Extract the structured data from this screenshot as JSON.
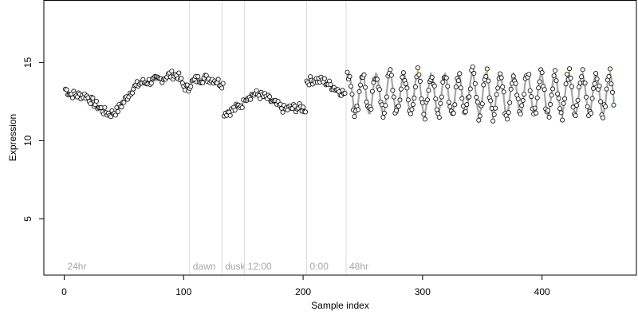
{
  "chart_data": {
    "type": "scatter",
    "title": "",
    "xlabel": "Sample index",
    "ylabel": "Expression",
    "xlim": [
      -17,
      479
    ],
    "ylim": [
      1.4,
      19.0
    ],
    "x_ticks": [
      0,
      100,
      200,
      300,
      400
    ],
    "y_ticks": [
      5,
      10,
      15
    ],
    "grid": false,
    "colors": {
      "point_fill": "#ffffff",
      "point_stroke": "#000000",
      "line": "#a6a6a6",
      "high_residual": "#f4a736",
      "low_residual": "#6f95d6",
      "period_line": "#d9d9d9",
      "period_text": "#a6a6a6"
    },
    "periods": [
      {
        "label": "24hr",
        "x": 0
      },
      {
        "label": "dawn",
        "x": 105
      },
      {
        "label": "dusk",
        "x": 132
      },
      {
        "label": "12:00",
        "x": 151
      },
      {
        "label": "0:00",
        "x": 203
      },
      {
        "label": "48hr",
        "x": 236
      }
    ],
    "segments": [
      {
        "x_start": 1,
        "x_end": 104,
        "anchors": [
          [
            1,
            13.3
          ],
          [
            5,
            13.0
          ],
          [
            12,
            12.9
          ],
          [
            18,
            12.9
          ],
          [
            25,
            12.4
          ],
          [
            33,
            11.9
          ],
          [
            38,
            11.7
          ],
          [
            44,
            11.9
          ],
          [
            50,
            12.5
          ],
          [
            57,
            13.3
          ],
          [
            64,
            13.7
          ],
          [
            72,
            13.8
          ],
          [
            80,
            13.9
          ],
          [
            88,
            14.2
          ],
          [
            95,
            14.2
          ],
          [
            100,
            13.5
          ],
          [
            104,
            13.3
          ]
        ],
        "amp": 0,
        "period": 0
      },
      {
        "x_start": 105,
        "x_end": 133,
        "anchors": [
          [
            105,
            13.6
          ],
          [
            110,
            13.9
          ],
          [
            118,
            14.0
          ],
          [
            126,
            13.9
          ],
          [
            133,
            13.6
          ]
        ],
        "amp": 0,
        "period": 0
      },
      {
        "x_start": 134,
        "x_end": 150,
        "anchors": [
          [
            134,
            11.8
          ],
          [
            140,
            11.9
          ],
          [
            146,
            12.2
          ],
          [
            150,
            12.4
          ]
        ],
        "amp": 0,
        "period": 0
      },
      {
        "x_start": 152,
        "x_end": 202,
        "anchors": [
          [
            152,
            12.8
          ],
          [
            160,
            13.0
          ],
          [
            168,
            12.8
          ],
          [
            176,
            12.4
          ],
          [
            184,
            12.0
          ],
          [
            192,
            12.1
          ],
          [
            198,
            12.1
          ],
          [
            202,
            12.0
          ]
        ],
        "amp": 0,
        "period": 0
      },
      {
        "x_start": 203,
        "x_end": 235,
        "anchors": [
          [
            203,
            13.8
          ],
          [
            210,
            13.9
          ],
          [
            218,
            13.8
          ],
          [
            226,
            13.4
          ],
          [
            235,
            13.0
          ]
        ],
        "amp": 0,
        "period": 0
      },
      {
        "x_start": 237,
        "x_end": 460,
        "anchors": [
          [
            237,
            13.0
          ],
          [
            460,
            13.0
          ]
        ],
        "amp": 1.3,
        "period": 11.5
      }
    ]
  }
}
